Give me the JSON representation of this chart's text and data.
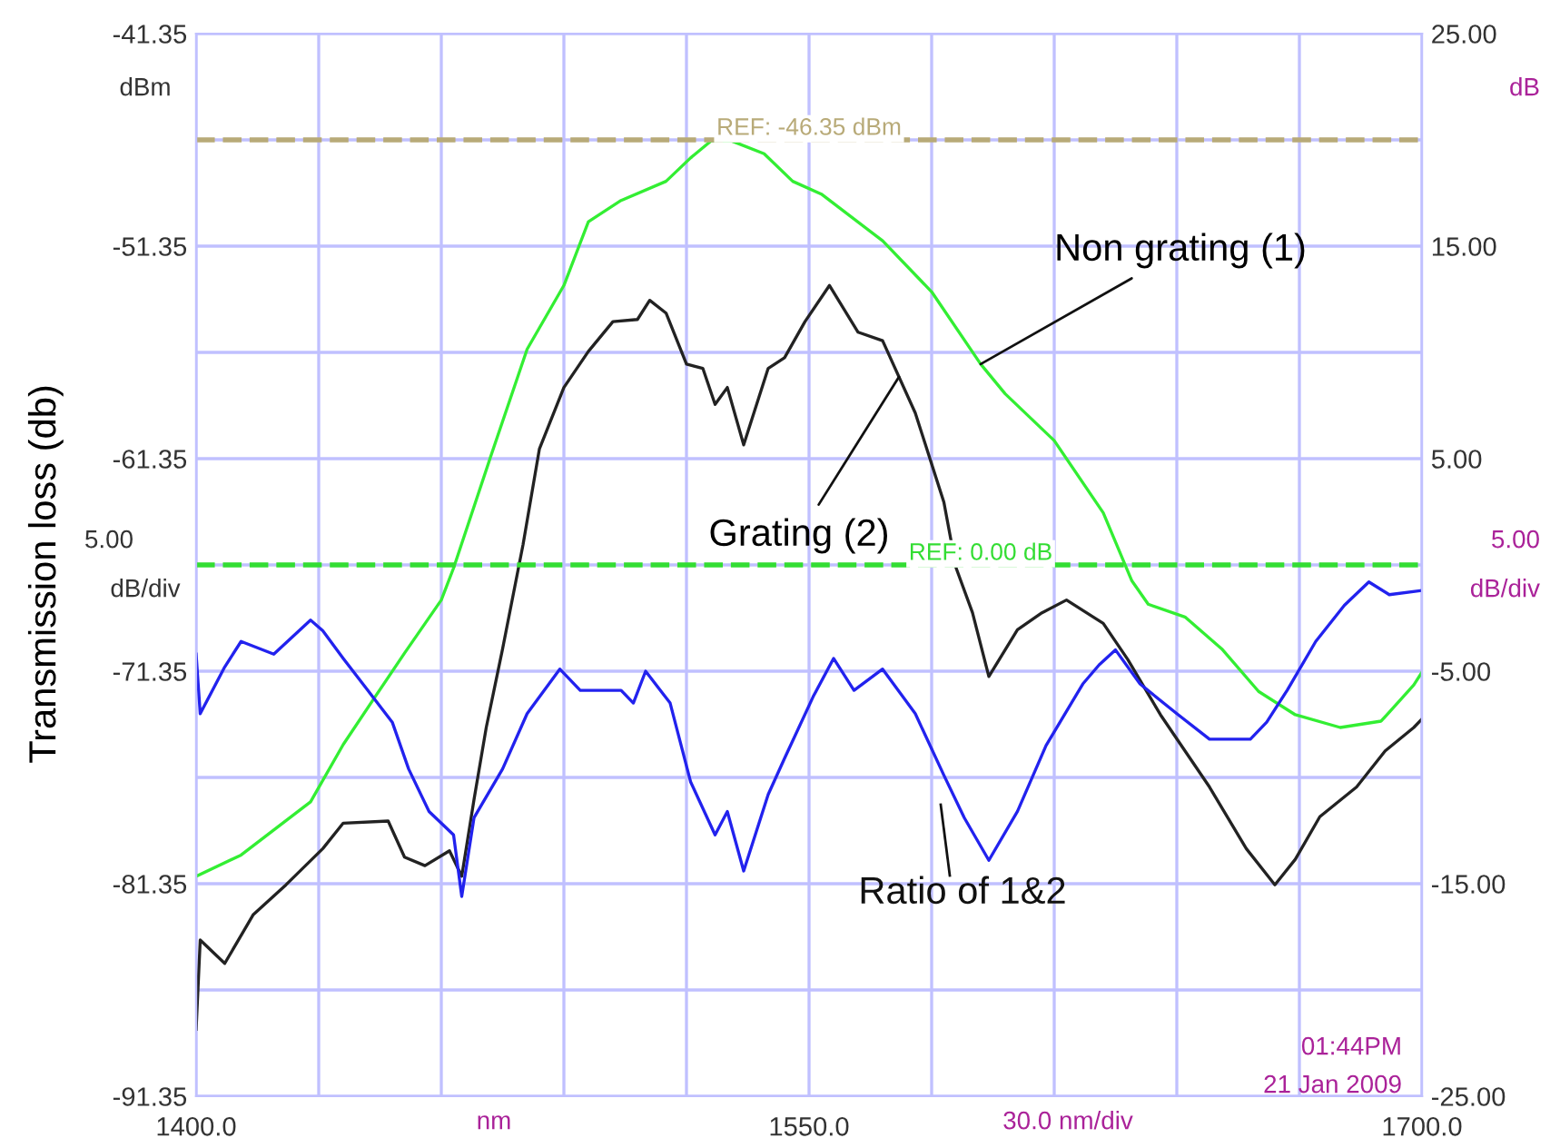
{
  "chart_data": {
    "type": "line",
    "ylabel": "Transmission loss (db)",
    "xlim": [
      1400,
      1700
    ],
    "xticks": [
      {
        "value": 1400,
        "label": "1400.0"
      },
      {
        "value": 1430,
        "label": null
      },
      {
        "value": 1460,
        "label": null
      },
      {
        "value": 1490,
        "label": null
      },
      {
        "value": 1520,
        "label": null
      },
      {
        "value": 1550,
        "label": "1550.0"
      },
      {
        "value": 1580,
        "label": null
      },
      {
        "value": 1610,
        "label": null
      },
      {
        "value": 1640,
        "label": null
      },
      {
        "value": 1670,
        "label": null
      },
      {
        "value": 1700,
        "label": "1700.0"
      }
    ],
    "ylim": [
      -91.35,
      -41.35
    ],
    "yticks": [
      -91.35,
      {
        "value": -86.35,
        "label": null
      },
      -81.35,
      {
        "value": -76.35,
        "label": null
      },
      -71.35,
      {
        "value": -66.35,
        "label": null
      },
      -61.35,
      {
        "value": -56.35,
        "label": null
      },
      -51.35,
      {
        "value": -46.35,
        "label": null
      },
      -41.35
    ],
    "y2lim": [
      -25,
      25
    ],
    "y2ticks": [
      {
        "value": -25,
        "label": "-25.00"
      },
      {
        "value": -15,
        "label": "-15.00"
      },
      {
        "value": -5,
        "label": "-5.00"
      },
      {
        "value": 5,
        "label": "5.00"
      },
      {
        "value": 15,
        "label": "15.00"
      },
      {
        "value": 25,
        "label": "25.00"
      }
    ],
    "grid": true,
    "marker": "none",
    "line_style": "solid",
    "series": [
      {
        "color": "#33ee33",
        "x": [
          1400,
          1411,
          1428,
          1436,
          1444,
          1451,
          1460,
          1463,
          1472,
          1481,
          1490,
          1496,
          1504,
          1515,
          1521,
          1526,
          1531,
          1539,
          1546,
          1553,
          1568,
          1580,
          1592,
          1598,
          1610,
          1622,
          1629,
          1633,
          1642,
          1651,
          1660,
          1669,
          1680,
          1690,
          1698,
          1700
        ],
        "values": [
          -81.0,
          -80.0,
          -77.5,
          -74.8,
          -72.5,
          -70.5,
          -68.0,
          -66.5,
          -61.3,
          -56.2,
          -53.2,
          -50.2,
          -49.2,
          -48.3,
          -47.2,
          -46.4,
          -46.4,
          -47.0,
          -48.3,
          -48.9,
          -51.1,
          -53.5,
          -56.9,
          -58.3,
          -60.5,
          -63.9,
          -67.1,
          -68.2,
          -68.8,
          -70.3,
          -72.3,
          -73.4,
          -74.0,
          -73.7,
          -72.0,
          -71.4
        ]
      },
      {
        "color": "#222222",
        "x": [
          1400,
          1401,
          1407,
          1414,
          1422,
          1431,
          1436,
          1447,
          1451,
          1456,
          1462,
          1465,
          1468,
          1471,
          1475,
          1480,
          1484,
          1490,
          1496,
          1502,
          1508,
          1511,
          1515,
          1520,
          1524,
          1527,
          1530,
          1534,
          1540,
          1544,
          1549,
          1555,
          1562,
          1568,
          1576,
          1583,
          1586,
          1590,
          1594,
          1601,
          1607,
          1613,
          1622,
          1628,
          1636,
          1648,
          1657,
          1664,
          1669,
          1675,
          1684,
          1691,
          1698,
          1700
        ],
        "values": [
          -88.2,
          -84.0,
          -85.1,
          -82.8,
          -81.4,
          -79.7,
          -78.5,
          -78.4,
          -80.1,
          -80.5,
          -79.8,
          -81.0,
          -77.4,
          -74.0,
          -70.3,
          -65.4,
          -60.9,
          -58.0,
          -56.3,
          -54.9,
          -54.8,
          -53.9,
          -54.5,
          -56.9,
          -57.1,
          -58.8,
          -58.0,
          -60.7,
          -57.1,
          -56.6,
          -54.9,
          -53.2,
          -55.4,
          -55.8,
          -59.2,
          -63.4,
          -66.5,
          -68.6,
          -71.6,
          -69.4,
          -68.6,
          -68.0,
          -69.1,
          -70.8,
          -73.4,
          -76.8,
          -79.7,
          -81.4,
          -80.2,
          -78.2,
          -76.8,
          -75.1,
          -74.0,
          -73.6
        ]
      },
      {
        "color": "#2222ee",
        "axis": "y2",
        "x": [
          1400,
          1401,
          1407,
          1411,
          1419,
          1428,
          1431,
          1436,
          1442,
          1448,
          1452,
          1457,
          1463,
          1465,
          1468,
          1475,
          1481,
          1489,
          1494,
          1504,
          1507,
          1510,
          1516,
          1521,
          1527,
          1530,
          1534,
          1540,
          1544,
          1551,
          1556,
          1561,
          1568,
          1576,
          1583,
          1588,
          1594,
          1601,
          1608,
          1617,
          1621,
          1625,
          1631,
          1640,
          1648,
          1658,
          1662,
          1667,
          1674,
          1681,
          1687,
          1692,
          1700
        ],
        "values": [
          -4.2,
          -7.0,
          -4.8,
          -3.6,
          -4.2,
          -2.6,
          -3.1,
          -4.4,
          -5.9,
          -7.4,
          -9.6,
          -11.6,
          -12.7,
          -15.6,
          -11.9,
          -9.6,
          -7.0,
          -4.9,
          -5.9,
          -5.9,
          -6.5,
          -5.0,
          -6.5,
          -10.2,
          -12.7,
          -11.6,
          -14.4,
          -10.8,
          -9.1,
          -6.2,
          -4.4,
          -5.9,
          -4.9,
          -7.0,
          -9.9,
          -11.9,
          -13.9,
          -11.6,
          -8.5,
          -5.6,
          -4.7,
          -4.0,
          -5.6,
          -7.0,
          -8.2,
          -8.2,
          -7.4,
          -5.9,
          -3.6,
          -1.9,
          -0.8,
          -1.4,
          -1.2
        ]
      }
    ],
    "ref_lines": [
      {
        "axis": "y",
        "value": -46.35,
        "label": "REF: -46.35 dBm",
        "color": "#b8aa78",
        "line_style": "dashed"
      },
      {
        "axis": "y2",
        "value": 0,
        "label": "REF: 0.00 dB",
        "color": "#33dd33",
        "line_style": "dashed"
      }
    ],
    "annotations": [
      {
        "text": "Non grating (1)",
        "x": 1592,
        "y": -56.9
      },
      {
        "text": "Grating (2)",
        "x": 1572,
        "y": -57.5
      },
      "Ratio of 1&2",
      "dBm",
      "5.00",
      "dB/div",
      "dB",
      "5.00",
      "dB/div",
      "nm",
      "30.0 nm/div",
      "01:44PM",
      "21 Jan 2009"
    ]
  }
}
